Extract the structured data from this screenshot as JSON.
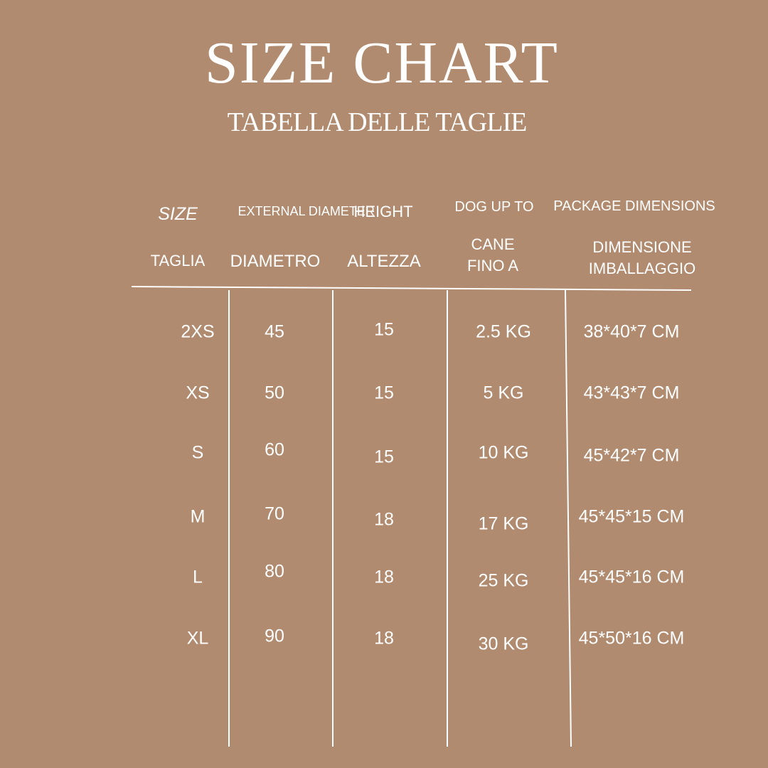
{
  "title": "SIZE CHART",
  "subtitle": "TABELLA DELLE TAGLIE",
  "headers": {
    "size_en": "SIZE",
    "size_it": "TAGLIA",
    "diameter_en": "EXTERNAL DIAMETER",
    "diameter_it": "DIAMETRO",
    "height_en": "HEIGHT",
    "height_it": "ALTEZZA",
    "dog_en": "DOG UP TO",
    "dog_it": "CANE FINO A",
    "package_en": "PACKAGE DIMENSIONS",
    "package_it": "DIMENSIONE IMBALLAGGIO"
  },
  "rows": [
    [
      "2XS",
      "45",
      "15",
      "2.5 KG",
      "38*40*7 CM"
    ],
    [
      "XS",
      "50",
      "15",
      "5 KG",
      "43*43*7 CM"
    ],
    [
      "S",
      "60",
      "15",
      "10 KG",
      "45*42*7 CM"
    ],
    [
      "M",
      "70",
      "18",
      "17 KG",
      "45*45*15 CM"
    ],
    [
      "L",
      "80",
      "18",
      "25 KG",
      "45*45*16 CM"
    ],
    [
      "XL",
      "90",
      "18",
      "30 KG",
      "45*50*16 CM"
    ]
  ],
  "colors": {
    "background": "#b08b6f",
    "text": "#ffffff"
  }
}
